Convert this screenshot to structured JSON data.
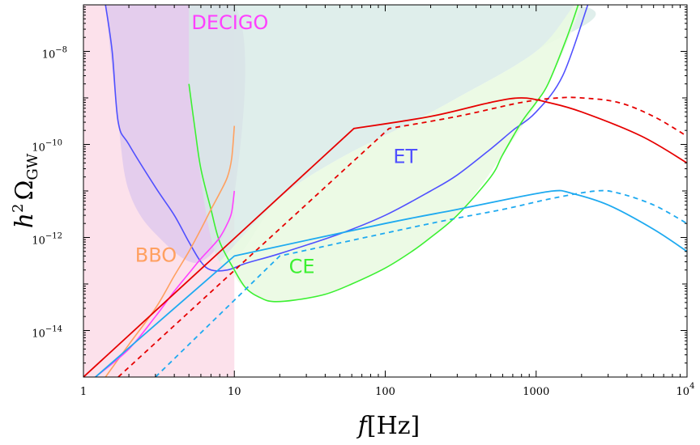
{
  "chart_data": {
    "type": "line",
    "x_scale": "log",
    "y_scale": "log",
    "xlim": [
      1,
      10000
    ],
    "ylim": [
      1e-15,
      1e-07
    ],
    "xlabel": {
      "italic": "f",
      "unit": "[Hz]"
    },
    "ylabel": {
      "prefix": "h",
      "power": "2",
      "symbol": "Ω",
      "subscript": "GW"
    },
    "x_ticks": [
      {
        "value": 1,
        "label": "1",
        "sup": ""
      },
      {
        "value": 10,
        "label": "10",
        "sup": ""
      },
      {
        "value": 100,
        "label": "100",
        "sup": ""
      },
      {
        "value": 1000,
        "label": "1000",
        "sup": ""
      },
      {
        "value": 10000,
        "label": "10",
        "sup": "4"
      }
    ],
    "y_ticks": [
      {
        "value": 1e-08,
        "label": "10",
        "sup": "−8"
      },
      {
        "value": 1e-10,
        "label": "10",
        "sup": "−10"
      },
      {
        "value": 1e-12,
        "label": "10",
        "sup": "−12"
      },
      {
        "value": 1e-14,
        "label": "10",
        "sup": "−14"
      }
    ],
    "regions": [
      {
        "id": "pink-region",
        "color": "#fbd9e6",
        "points": [
          [
            1,
            1e-07
          ],
          [
            10,
            1e-07
          ],
          [
            10,
            1e-15
          ],
          [
            1,
            1e-15
          ]
        ]
      },
      {
        "id": "decigo-region",
        "color": "#ddc8ee",
        "points": [
          [
            1.4,
            1e-07
          ],
          [
            10,
            1e-07
          ],
          [
            10,
            8e-12
          ],
          [
            6,
            3e-13
          ],
          [
            3,
            1.2e-12
          ],
          [
            2,
            1e-11
          ],
          [
            1.7,
            3e-10
          ],
          [
            1.4,
            1e-07
          ]
        ]
      },
      {
        "id": "et-region",
        "color": "#d7eae6",
        "points": [
          [
            5,
            1e-07
          ],
          [
            1800,
            1e-07
          ],
          [
            1000,
            1e-08
          ],
          [
            300,
            1e-09
          ],
          [
            150,
            3e-10
          ],
          [
            50,
            5e-11
          ],
          [
            20,
            7e-12
          ],
          [
            8,
            3e-13
          ],
          [
            5,
            2e-09
          ]
        ]
      },
      {
        "id": "ce-region",
        "color": "#eaf9e2",
        "points": [
          [
            8,
            3e-13
          ],
          [
            20,
            7e-12
          ],
          [
            50,
            5e-11
          ],
          [
            150,
            3e-10
          ],
          [
            300,
            1e-09
          ],
          [
            1000,
            1e-08
          ],
          [
            1800,
            1e-07
          ],
          [
            2000,
            1e-07
          ],
          [
            1200,
            2e-09
          ],
          [
            600,
            6e-11
          ],
          [
            300,
            3e-12
          ],
          [
            150,
            5e-13
          ],
          [
            100,
            2.2e-13
          ],
          [
            60,
            1e-13
          ],
          [
            40,
            6e-14
          ],
          [
            25,
            4.5e-14
          ],
          [
            18,
            4.2e-14
          ],
          [
            14,
            5.5e-14
          ],
          [
            11,
            1e-13
          ],
          [
            10,
            1.5e-13
          ],
          [
            8,
            3e-13
          ]
        ]
      }
    ],
    "series": [
      {
        "id": "decigo",
        "color": "#5050ff",
        "dashed": false,
        "width": 1.6,
        "points": [
          [
            1.4,
            1e-07
          ],
          [
            1.55,
            1e-08
          ],
          [
            1.7,
            3e-10
          ],
          [
            2,
            1e-10
          ],
          [
            3,
            1.2e-11
          ],
          [
            4,
            3e-12
          ],
          [
            5,
            8e-13
          ],
          [
            6,
            3e-13
          ],
          [
            7,
            2e-13
          ],
          [
            9,
            2e-13
          ],
          [
            12,
            2.8e-13
          ],
          [
            20,
            4.5e-13
          ],
          [
            50,
            1.2e-12
          ],
          [
            100,
            3e-12
          ],
          [
            200,
            1e-11
          ],
          [
            300,
            2.2e-11
          ],
          [
            500,
            8e-11
          ],
          [
            700,
            2e-10
          ],
          [
            1000,
            5e-10
          ],
          [
            1500,
            3e-09
          ],
          [
            2200,
            1e-07
          ]
        ]
      },
      {
        "id": "et",
        "color": "#3cf032",
        "dashed": false,
        "width": 1.6,
        "points": [
          [
            5,
            2e-09
          ],
          [
            5.5,
            2e-10
          ],
          [
            6,
            3e-11
          ],
          [
            7,
            4e-12
          ],
          [
            8,
            8e-13
          ],
          [
            10,
            2e-13
          ],
          [
            12,
            8e-14
          ],
          [
            15,
            5e-14
          ],
          [
            18,
            4.2e-14
          ],
          [
            25,
            4.5e-14
          ],
          [
            40,
            6e-14
          ],
          [
            60,
            1e-13
          ],
          [
            100,
            2.2e-13
          ],
          [
            150,
            5e-13
          ],
          [
            200,
            1e-12
          ],
          [
            300,
            3e-12
          ],
          [
            500,
            2e-11
          ],
          [
            600,
            6e-11
          ],
          [
            800,
            3e-10
          ],
          [
            1000,
            8e-10
          ],
          [
            1200,
            2e-09
          ],
          [
            1600,
            2e-08
          ],
          [
            1900,
            1e-07
          ]
        ]
      },
      {
        "id": "bbo",
        "color": "#ffa060",
        "dashed": false,
        "width": 1.6,
        "points": [
          [
            1.4,
            1e-15
          ],
          [
            2,
            5e-15
          ],
          [
            3,
            3e-14
          ],
          [
            4,
            1.5e-13
          ],
          [
            5,
            5e-13
          ],
          [
            6,
            1.5e-12
          ],
          [
            7,
            4e-12
          ],
          [
            8,
            9e-12
          ],
          [
            9,
            2e-11
          ],
          [
            9.6,
            5e-11
          ],
          [
            10,
            2.5e-10
          ]
        ]
      },
      {
        "id": "decigo-lower",
        "color": "#ff40ff",
        "dashed": false,
        "width": 1.6,
        "points": [
          [
            1.2,
            1e-15
          ],
          [
            2,
            4e-15
          ],
          [
            3,
            2e-14
          ],
          [
            4,
            7e-14
          ],
          [
            5,
            1.7e-13
          ],
          [
            6,
            3.5e-13
          ],
          [
            7,
            6e-13
          ],
          [
            8,
            1e-12
          ],
          [
            9,
            2e-12
          ],
          [
            9.6,
            3.5e-12
          ],
          [
            10,
            1e-11
          ]
        ]
      },
      {
        "id": "red-solid",
        "color": "#e60000",
        "dashed": false,
        "width": 1.8,
        "points": [
          [
            1,
            1e-15
          ],
          [
            62,
            2.2e-10
          ],
          [
            200,
            4e-10
          ],
          [
            500,
            8e-10
          ],
          [
            800,
            1e-09
          ],
          [
            1200,
            8e-10
          ],
          [
            2000,
            5e-10
          ],
          [
            5000,
            1.5e-10
          ],
          [
            10000,
            4e-11
          ]
        ]
      },
      {
        "id": "red-dashed",
        "color": "#e60000",
        "dashed": true,
        "width": 1.8,
        "points": [
          [
            1.7,
            1e-15
          ],
          [
            106,
            2.2e-10
          ],
          [
            300,
            4e-10
          ],
          [
            800,
            8e-10
          ],
          [
            1400,
            1e-09
          ],
          [
            2000,
            1e-09
          ],
          [
            3500,
            8e-10
          ],
          [
            6000,
            4e-10
          ],
          [
            10000,
            1.5e-10
          ]
        ]
      },
      {
        "id": "blue-solid",
        "color": "#1eaaf0",
        "dashed": false,
        "width": 1.8,
        "points": [
          [
            1.2,
            1e-15
          ],
          [
            10,
            4e-13
          ],
          [
            100,
            2e-12
          ],
          [
            300,
            4e-12
          ],
          [
            700,
            7e-12
          ],
          [
            1300,
            1e-11
          ],
          [
            1700,
            9e-12
          ],
          [
            3000,
            5e-12
          ],
          [
            6000,
            1.5e-12
          ],
          [
            10000,
            5e-13
          ]
        ]
      },
      {
        "id": "blue-dashed",
        "color": "#1eaaf0",
        "dashed": true,
        "width": 1.8,
        "points": [
          [
            3,
            1e-15
          ],
          [
            20,
            4e-13
          ],
          [
            200,
            2e-12
          ],
          [
            600,
            4e-12
          ],
          [
            1300,
            7e-12
          ],
          [
            2500,
            1e-11
          ],
          [
            3500,
            9e-12
          ],
          [
            6000,
            5e-12
          ],
          [
            10000,
            2e-12
          ]
        ]
      }
    ],
    "labels": [
      {
        "text": "DECIGO",
        "color": "#ff40ff",
        "x": 5.2,
        "y": 3e-08
      },
      {
        "text": "ET",
        "color": "#5050ff",
        "x": 113,
        "y": 4e-11
      },
      {
        "text": "BBO",
        "color": "#ffa060",
        "x": 2.2,
        "y": 3e-13
      },
      {
        "text": "CE",
        "color": "#3cf032",
        "x": 23,
        "y": 1.7e-13
      }
    ]
  }
}
